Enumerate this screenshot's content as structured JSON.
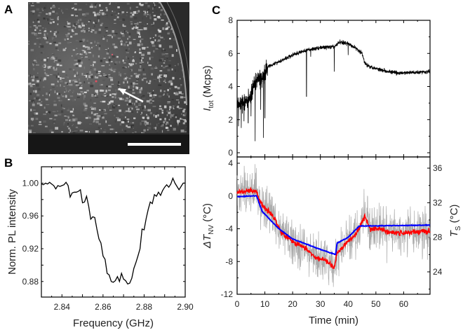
{
  "panels": {
    "a": "A",
    "b": "B",
    "c": "C"
  },
  "chart_data": [
    {
      "id": "B",
      "type": "line",
      "xlabel": "Frequency (GHz)",
      "ylabel": "Norm. PL intensity",
      "xlim": [
        2.83,
        2.9
      ],
      "ylim": [
        0.861,
        1.02
      ],
      "xticks": [
        "2.84",
        "2.86",
        "2.88",
        "2.90"
      ],
      "yticks": [
        "0.88",
        "0.92",
        "0.96",
        "1.00"
      ],
      "x": [
        2.83,
        2.831,
        2.832,
        2.833,
        2.834,
        2.835,
        2.836,
        2.837,
        2.838,
        2.839,
        2.84,
        2.841,
        2.842,
        2.843,
        2.844,
        2.845,
        2.846,
        2.847,
        2.848,
        2.849,
        2.85,
        2.851,
        2.852,
        2.853,
        2.854,
        2.855,
        2.856,
        2.857,
        2.858,
        2.859,
        2.86,
        2.861,
        2.862,
        2.863,
        2.864,
        2.865,
        2.866,
        2.867,
        2.868,
        2.869,
        2.87,
        2.871,
        2.872,
        2.873,
        2.874,
        2.875,
        2.876,
        2.877,
        2.878,
        2.879,
        2.88,
        2.881,
        2.882,
        2.883,
        2.884,
        2.885,
        2.886,
        2.887,
        2.888,
        2.889,
        2.89,
        2.891,
        2.892,
        2.893,
        2.894,
        2.895,
        2.896,
        2.897,
        2.898,
        2.899,
        2.9
      ],
      "y": [
        0.999,
        0.998,
        1.0,
        0.999,
        1.001,
        0.999,
        0.997,
        0.993,
        0.997,
        0.996,
        0.997,
        0.998,
        1.001,
        0.997,
        0.983,
        0.988,
        0.989,
        0.989,
        0.99,
        0.992,
        0.976,
        0.977,
        0.984,
        0.972,
        0.956,
        0.959,
        0.958,
        0.944,
        0.932,
        0.927,
        0.911,
        0.907,
        0.89,
        0.888,
        0.88,
        0.879,
        0.881,
        0.886,
        0.88,
        0.89,
        0.883,
        0.881,
        0.877,
        0.878,
        0.884,
        0.896,
        0.903,
        0.911,
        0.92,
        0.944,
        0.943,
        0.957,
        0.968,
        0.977,
        0.975,
        0.986,
        0.984,
        0.989,
        0.985,
        0.991,
        0.995,
        0.998,
        0.995,
        0.999,
        1.006,
        1.0,
        0.996,
        0.992,
        0.996,
        1.0,
        1.0
      ]
    },
    {
      "id": "C-top",
      "type": "line",
      "ylabel_main": "I",
      "ylabel_sub": "tot",
      "ylabel_unit": " (Mcps)",
      "xlim": [
        0,
        69.5
      ],
      "ylim": [
        0,
        8
      ],
      "yticks": [
        "0",
        "2",
        "4",
        "6",
        "8"
      ],
      "trend_t": [
        0,
        3,
        5,
        7,
        9,
        10,
        11,
        15,
        20,
        25,
        30,
        35,
        37,
        40,
        43,
        45,
        46,
        48,
        52,
        58,
        68
      ],
      "trend_v": [
        3.0,
        3.0,
        3.5,
        4.4,
        4.5,
        4.7,
        5.2,
        5.5,
        5.9,
        6.2,
        6.35,
        6.4,
        6.7,
        6.6,
        6.3,
        6.0,
        5.4,
        5.2,
        5.0,
        4.8,
        4.9
      ],
      "dips_t": [
        0.5,
        1.5,
        2.5,
        4,
        5,
        6.5,
        8.5,
        9.5,
        10,
        25,
        26.5,
        35,
        40
      ],
      "dips_v": [
        1.6,
        1.5,
        1.9,
        1.8,
        2.2,
        0.7,
        2.6,
        0.9,
        2.1,
        3.4,
        5.8,
        4.9,
        5.9
      ]
    },
    {
      "id": "C-bottom",
      "type": "line",
      "xlabel": "Time (min)",
      "ylabel_main": "ΔT",
      "ylabel_sub": "NV",
      "ylabel_unit": " (°C)",
      "y2label_main": "T",
      "y2label_sub": "S",
      "y2label_unit": " (°C)",
      "xlim": [
        0,
        69.5
      ],
      "ylim": [
        -12,
        4.8
      ],
      "y2lim": [
        21.2,
        37.5
      ],
      "xticks": [
        "0",
        "10",
        "20",
        "30",
        "40",
        "50",
        "60"
      ],
      "yticks": [
        "-12",
        "-8",
        "-4",
        "0",
        "4"
      ],
      "y2ticks": [
        "24",
        "28",
        "32",
        "36"
      ],
      "series": [
        {
          "name": "raw ΔT_NV",
          "color": "#a9a9a9",
          "axis": "left",
          "noise": 2.6
        },
        {
          "name": "smoothed ΔT_NV",
          "color": "#ff0000",
          "axis": "left",
          "t": [
            0,
            7,
            8,
            10,
            12,
            14,
            16,
            20,
            25,
            28,
            32,
            35,
            36,
            40,
            43,
            46,
            48,
            52,
            55,
            60,
            68
          ],
          "v": [
            0.5,
            0.6,
            -0.5,
            -1.5,
            -2,
            -3,
            -4.5,
            -5.5,
            -6.5,
            -7.5,
            -7.9,
            -8.8,
            -7,
            -5.5,
            -4.5,
            -2.5,
            -4,
            -4,
            -4.5,
            -4.5,
            -4.3
          ]
        },
        {
          "name": "T_S",
          "color": "#0000ff",
          "axis": "right",
          "t": [
            0,
            7,
            9,
            15,
            20,
            30,
            35.5,
            36,
            40,
            44,
            68
          ],
          "v": [
            32.7,
            32.8,
            31.0,
            29.0,
            27.8,
            26.6,
            26.0,
            27.3,
            28.0,
            29.3,
            29.4
          ]
        }
      ]
    }
  ],
  "image_a": {
    "description_free": true
  }
}
